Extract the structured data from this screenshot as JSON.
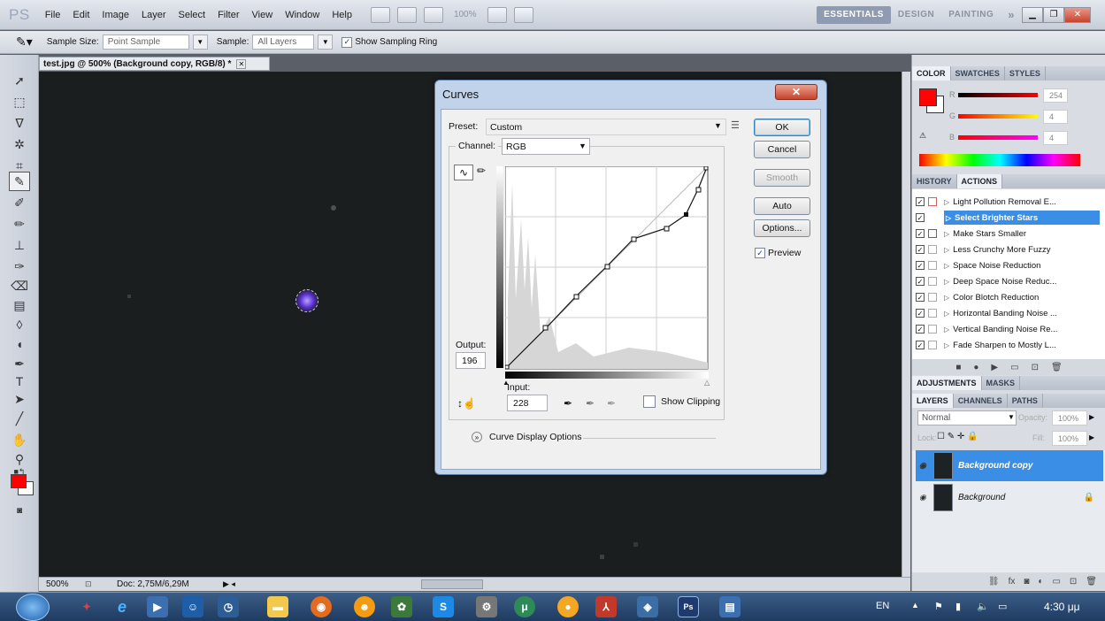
{
  "app": {
    "logo": "PS"
  },
  "menubar": {
    "items": [
      "File",
      "Edit",
      "Image",
      "Layer",
      "Select",
      "Filter",
      "View",
      "Window",
      "Help"
    ],
    "zoom_sel": "100%",
    "workspaces": [
      "ESSENTIALS",
      "DESIGN",
      "PAINTING"
    ],
    "more": "»"
  },
  "options": {
    "sample_size_label": "Sample Size:",
    "sample_size_value": "Point Sample",
    "sample_label": "Sample:",
    "sample_value": "All Layers",
    "show_ring": "Show Sampling Ring"
  },
  "document": {
    "tab_title": "test.jpg @ 500% (Background copy, RGB/8) *",
    "zoom": "500%",
    "doc_info": "Doc: 2,75M/6,29M"
  },
  "curves": {
    "title": "Curves",
    "preset_label": "Preset:",
    "preset_value": "Custom",
    "channel_label": "Channel:",
    "channel_value": "RGB",
    "ok": "OK",
    "cancel": "Cancel",
    "smooth": "Smooth",
    "auto": "Auto",
    "options": "Options...",
    "preview": "Preview",
    "output_label": "Output:",
    "output_value": "196",
    "input_label": "Input:",
    "input_value": "228",
    "show_clipping": "Show Clipping",
    "display_options": "Curve Display Options"
  },
  "color_panel": {
    "tabs": [
      "COLOR",
      "SWATCHES",
      "STYLES"
    ],
    "r_label": "R",
    "g_label": "G",
    "b_label": "B",
    "r": "254",
    "g": "4",
    "b": "4",
    "r_frac": 0.996,
    "g_frac": 0.016,
    "b_frac": 0.016,
    "fg_color": "#fe0404"
  },
  "history_panel": {
    "tabs": [
      "HISTORY",
      "ACTIONS"
    ],
    "actions": [
      {
        "label": "Light Pollution Removal E...",
        "selected": false,
        "box": "r"
      },
      {
        "label": "Select Brighter Stars",
        "selected": true,
        "box": ""
      },
      {
        "label": "Make Stars Smaller",
        "selected": false,
        "box": "d"
      },
      {
        "label": "Less Crunchy More Fuzzy",
        "selected": false,
        "box": "g"
      },
      {
        "label": "Space Noise Reduction",
        "selected": false,
        "box": "g"
      },
      {
        "label": "Deep Space Noise Reduc...",
        "selected": false,
        "box": "g"
      },
      {
        "label": "Color Blotch Reduction",
        "selected": false,
        "box": "g"
      },
      {
        "label": "Horizontal Banding Noise ...",
        "selected": false,
        "box": "g"
      },
      {
        "label": "Vertical Banding Noise Re...",
        "selected": false,
        "box": "g"
      },
      {
        "label": "Fade Sharpen to Mostly L...",
        "selected": false,
        "box": "g"
      }
    ]
  },
  "adjustments_panel": {
    "tabs": [
      "ADJUSTMENTS",
      "MASKS"
    ]
  },
  "layers_panel": {
    "tabs": [
      "LAYERS",
      "CHANNELS",
      "PATHS"
    ],
    "blend": "Normal",
    "opacity_label": "Opacity:",
    "opacity": "100%",
    "lock_label": "Lock:",
    "fill_label": "Fill:",
    "fill": "100%",
    "layers": [
      {
        "name": "Background copy",
        "selected": true
      },
      {
        "name": "Background",
        "selected": false
      }
    ]
  },
  "taskbar": {
    "lang": "EN",
    "time": "4:30 μμ"
  },
  "colors": {
    "accent": "#3a8ee6",
    "foreground": "#ff0000"
  }
}
